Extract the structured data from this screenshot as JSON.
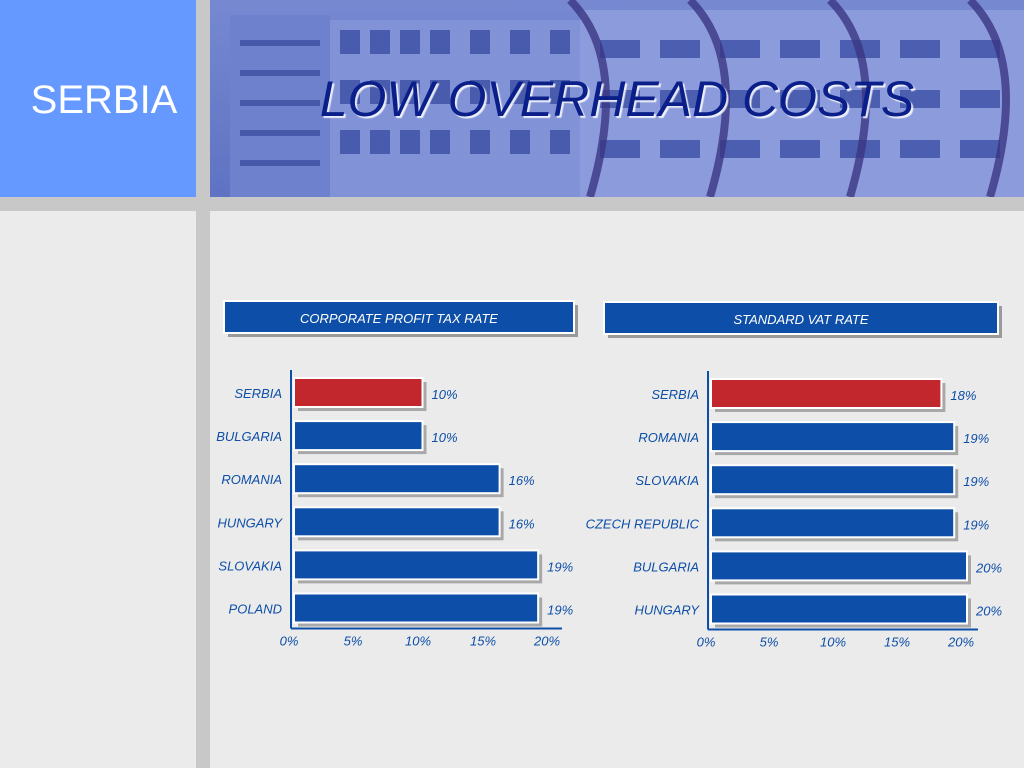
{
  "header": {
    "country": "SERBIA",
    "title": "LOW OVERHEAD COSTS"
  },
  "colors": {
    "highlight": "#c1272d",
    "bar": "#0d4fa8",
    "header_panel": "#6699ff",
    "title_text": "#0b1f8a"
  },
  "chart_data": [
    {
      "type": "bar",
      "orientation": "horizontal",
      "title": "CORPORATE PROFIT TAX RATE",
      "categories": [
        "SERBIA",
        "BULGARIA",
        "ROMANIA",
        "HUNGARY",
        "SLOVAKIA",
        "POLAND"
      ],
      "values": [
        10,
        10,
        16,
        16,
        19,
        19
      ],
      "value_labels": [
        "10%",
        "10%",
        "16%",
        "16%",
        "19%",
        "19%"
      ],
      "highlight": "SERBIA",
      "xlim": [
        0,
        20
      ],
      "xticks": [
        "0%",
        "5%",
        "10%",
        "15%",
        "20%"
      ],
      "grid": false,
      "legend": "none"
    },
    {
      "type": "bar",
      "orientation": "horizontal",
      "title": "STANDARD VAT RATE",
      "categories": [
        "SERBIA",
        "ROMANIA",
        "SLOVAKIA",
        "CZECH REPUBLIC",
        "BULGARIA",
        "HUNGARY"
      ],
      "values": [
        18,
        19,
        19,
        19,
        20,
        20
      ],
      "value_labels": [
        "18%",
        "19%",
        "19%",
        "19%",
        "20%",
        "20%"
      ],
      "highlight": "SERBIA",
      "xlim": [
        0,
        20
      ],
      "xticks": [
        "0%",
        "5%",
        "10%",
        "15%",
        "20%"
      ],
      "grid": false,
      "legend": "none"
    }
  ]
}
